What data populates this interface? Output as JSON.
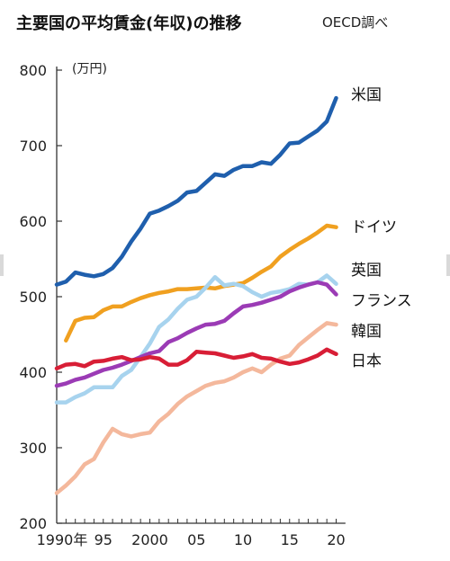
{
  "title": "主要国の平均賃金(年収)の推移",
  "source": "OECD調べ",
  "chart_data": {
    "type": "line",
    "unit_label": "(万円)",
    "x": [
      1990,
      1991,
      1992,
      1993,
      1994,
      1995,
      1996,
      1997,
      1998,
      1999,
      2000,
      2001,
      2002,
      2003,
      2004,
      2005,
      2006,
      2007,
      2008,
      2009,
      2010,
      2011,
      2012,
      2013,
      2014,
      2015,
      2016,
      2017,
      2018,
      2019,
      2020
    ],
    "xticks": [
      {
        "value": 1990,
        "label": "1990年"
      },
      {
        "value": 1995,
        "label": "95"
      },
      {
        "value": 2000,
        "label": "2000"
      },
      {
        "value": 2005,
        "label": "05"
      },
      {
        "value": 2010,
        "label": "10"
      },
      {
        "value": 2015,
        "label": "15"
      },
      {
        "value": 2020,
        "label": "20"
      }
    ],
    "yticks": [
      200,
      300,
      400,
      500,
      600,
      700,
      800
    ],
    "xlim": [
      1990,
      2021
    ],
    "ylim": [
      200,
      800
    ],
    "grid": false,
    "series": [
      {
        "name": "米国",
        "color": "#1f5fad",
        "x": [
          1990,
          1991,
          1992,
          1993,
          1994,
          1995,
          1996,
          1997,
          1998,
          1999,
          2000,
          2001,
          2002,
          2003,
          2004,
          2005,
          2006,
          2007,
          2008,
          2009,
          2010,
          2011,
          2012,
          2013,
          2014,
          2015,
          2016,
          2017,
          2018,
          2019,
          2020
        ],
        "values": [
          516,
          520,
          532,
          529,
          527,
          530,
          538,
          553,
          573,
          590,
          610,
          614,
          620,
          627,
          638,
          640,
          651,
          662,
          660,
          668,
          673,
          673,
          678,
          676,
          688,
          703,
          704,
          712,
          720,
          732,
          763
        ]
      },
      {
        "name": "ドイツ",
        "color": "#f0a020",
        "x": [
          1991,
          1992,
          1993,
          1994,
          1995,
          1996,
          1997,
          1998,
          1999,
          2000,
          2001,
          2002,
          2003,
          2004,
          2005,
          2006,
          2007,
          2008,
          2009,
          2010,
          2011,
          2012,
          2013,
          2014,
          2015,
          2016,
          2017,
          2018,
          2019,
          2020
        ],
        "values": [
          442,
          468,
          472,
          473,
          482,
          487,
          487,
          493,
          498,
          502,
          505,
          507,
          510,
          510,
          511,
          512,
          511,
          514,
          516,
          518,
          525,
          533,
          540,
          553,
          562,
          570,
          577,
          585,
          594,
          592
        ]
      },
      {
        "name": "英国",
        "color": "#a7d3ee",
        "x": [
          1990,
          1991,
          1992,
          1993,
          1994,
          1995,
          1996,
          1997,
          1998,
          1999,
          2000,
          2001,
          2002,
          2003,
          2004,
          2005,
          2006,
          2007,
          2008,
          2009,
          2010,
          2011,
          2012,
          2013,
          2014,
          2015,
          2016,
          2017,
          2018,
          2019,
          2020
        ],
        "values": [
          360,
          360,
          367,
          372,
          380,
          380,
          380,
          395,
          403,
          420,
          438,
          460,
          470,
          484,
          496,
          500,
          512,
          526,
          515,
          517,
          514,
          506,
          500,
          505,
          507,
          510,
          517,
          516,
          519,
          528,
          517
        ]
      },
      {
        "name": "フランス",
        "color": "#9b3bb5",
        "x": [
          1990,
          1991,
          1992,
          1993,
          1994,
          1995,
          1996,
          1997,
          1998,
          1999,
          2000,
          2001,
          2002,
          2003,
          2004,
          2005,
          2006,
          2007,
          2008,
          2009,
          2010,
          2011,
          2012,
          2013,
          2014,
          2015,
          2016,
          2017,
          2018,
          2019,
          2020
        ],
        "values": [
          382,
          385,
          390,
          393,
          398,
          403,
          406,
          410,
          415,
          420,
          425,
          428,
          440,
          445,
          452,
          458,
          463,
          464,
          468,
          478,
          487,
          489,
          492,
          496,
          500,
          507,
          512,
          516,
          519,
          516,
          503
        ]
      },
      {
        "name": "韓国",
        "color": "#f4b89c",
        "x": [
          1990,
          1991,
          1992,
          1993,
          1994,
          1995,
          1996,
          1997,
          1998,
          1999,
          2000,
          2001,
          2002,
          2003,
          2004,
          2005,
          2006,
          2007,
          2008,
          2009,
          2010,
          2011,
          2012,
          2013,
          2014,
          2015,
          2016,
          2017,
          2018,
          2019,
          2020
        ],
        "values": [
          240,
          250,
          262,
          278,
          285,
          307,
          325,
          318,
          315,
          318,
          320,
          335,
          345,
          358,
          368,
          375,
          382,
          386,
          388,
          393,
          400,
          405,
          400,
          410,
          418,
          422,
          436,
          446,
          456,
          465,
          463
        ]
      },
      {
        "name": "日本",
        "color": "#d81e36",
        "x": [
          1990,
          1991,
          1992,
          1993,
          1994,
          1995,
          1996,
          1997,
          1998,
          1999,
          2000,
          2001,
          2002,
          2003,
          2004,
          2005,
          2006,
          2007,
          2008,
          2009,
          2010,
          2011,
          2012,
          2013,
          2014,
          2015,
          2016,
          2017,
          2018,
          2019,
          2020
        ],
        "values": [
          405,
          410,
          411,
          408,
          414,
          415,
          418,
          420,
          416,
          417,
          420,
          418,
          410,
          410,
          416,
          427,
          426,
          425,
          422,
          419,
          421,
          424,
          419,
          418,
          414,
          411,
          413,
          417,
          422,
          430,
          424
        ]
      }
    ]
  }
}
